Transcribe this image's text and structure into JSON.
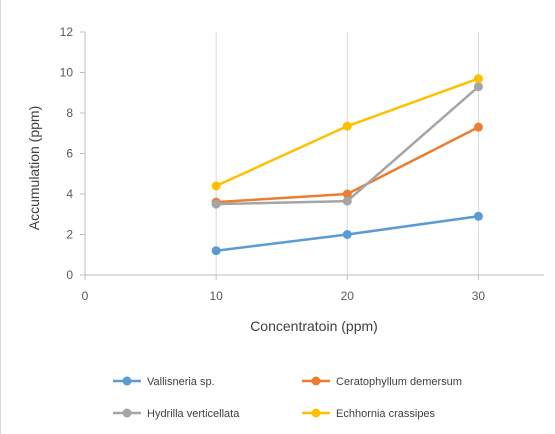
{
  "chart_data": {
    "type": "line",
    "title": "",
    "xlabel": "Concentratoin (ppm)",
    "ylabel": "Accumulation (ppm)",
    "xlim": [
      0,
      35
    ],
    "ylim": [
      0,
      12
    ],
    "xticks": [
      0,
      10,
      20,
      30
    ],
    "yticks": [
      0,
      2,
      4,
      6,
      8,
      10,
      12
    ],
    "x": [
      10,
      20,
      30
    ],
    "grid": "vertical",
    "legend_position": "bottom",
    "series": [
      {
        "name": "Vallisneria sp.",
        "color": "#5b9bd5",
        "values": [
          1.2,
          2.0,
          2.9
        ]
      },
      {
        "name": "Ceratophyllum demersum",
        "color": "#ed7d31",
        "values": [
          3.6,
          4.0,
          7.3
        ]
      },
      {
        "name": "Hydrilla verticellata",
        "color": "#a5a5a5",
        "values": [
          3.5,
          3.65,
          9.3
        ]
      },
      {
        "name": "Echhornia crassipes",
        "color": "#ffc000",
        "values": [
          4.4,
          7.35,
          9.7
        ]
      }
    ]
  }
}
